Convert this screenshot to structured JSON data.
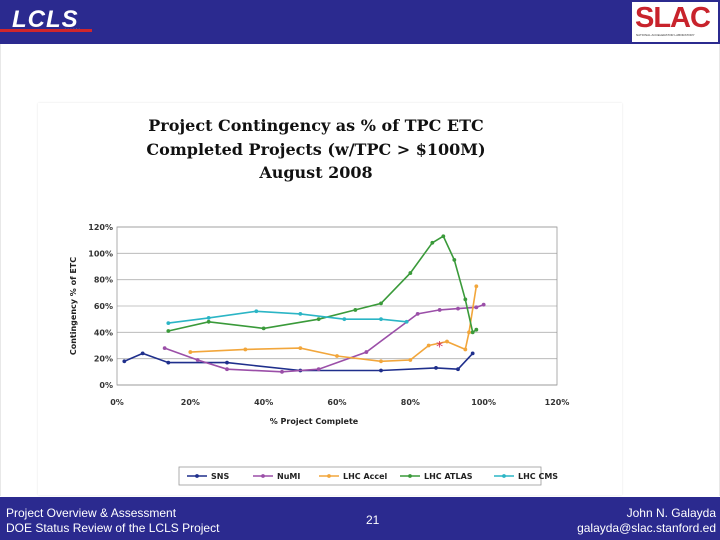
{
  "header": {
    "logo_text": "LCLS",
    "logo_dots": "......",
    "org_logo": "SLAC",
    "org_subtitle": "NATIONAL ACCELERATOR LABORATORY"
  },
  "footer": {
    "left_line1": "Project Overview & Assessment",
    "left_line2": "DOE Status Review of the LCLS Project",
    "page_number": "21",
    "right_line1": "John N. Galayda",
    "right_line2": "galayda@slac.stanford.ed"
  },
  "colors": {
    "bar": "#2b2a8f",
    "accent": "#c8232c"
  },
  "chart_data": {
    "type": "line",
    "title": [
      "Project Contingency as % of TPC ETC",
      "Completed Projects (w/TPC > $100M)",
      "August 2008"
    ],
    "xlabel": "% Project Complete",
    "ylabel": "Contingency % of ETC",
    "xlim": [
      0,
      120
    ],
    "ylim": [
      0,
      120
    ],
    "xticks": [
      0,
      20,
      40,
      60,
      80,
      100,
      120
    ],
    "yticks": [
      0,
      20,
      40,
      60,
      80,
      100,
      120
    ],
    "xtick_labels": [
      "0%",
      "20%",
      "40%",
      "60%",
      "80%",
      "100%",
      "120%"
    ],
    "ytick_labels": [
      "0%",
      "20%",
      "40%",
      "60%",
      "80%",
      "100%",
      "120%"
    ],
    "grid": true,
    "legend_position": "bottom",
    "series": [
      {
        "name": "SNS",
        "color": "#1f2f8c",
        "x": [
          2,
          7,
          14,
          30,
          50,
          72,
          87,
          93,
          97
        ],
        "y": [
          18,
          24,
          17,
          17,
          11,
          11,
          13,
          12,
          24
        ]
      },
      {
        "name": "NuMI",
        "color": "#9b4fa8",
        "x": [
          13,
          22,
          30,
          45,
          55,
          68,
          82,
          88,
          93,
          98,
          100
        ],
        "y": [
          28,
          19,
          12,
          10,
          12,
          25,
          54,
          57,
          58,
          59,
          61
        ]
      },
      {
        "name": "LHC Accel",
        "color": "#f2a63b",
        "x": [
          20,
          35,
          50,
          60,
          72,
          80,
          85,
          90,
          95,
          96,
          98
        ],
        "y": [
          25,
          27,
          28,
          22,
          18,
          19,
          30,
          33,
          27,
          40,
          75
        ]
      },
      {
        "name": "LHC ATLAS",
        "color": "#3a9a3a",
        "x": [
          14,
          25,
          40,
          55,
          65,
          72,
          80,
          86,
          89,
          92,
          95,
          97,
          98
        ],
        "y": [
          41,
          48,
          43,
          50,
          57,
          62,
          85,
          108,
          113,
          95,
          65,
          40,
          42
        ]
      },
      {
        "name": "LHC CMS",
        "color": "#2bb5c5",
        "x": [
          14,
          25,
          38,
          50,
          62,
          72,
          79
        ],
        "y": [
          47,
          51,
          56,
          54,
          50,
          50,
          48
        ]
      }
    ],
    "annotations": [
      {
        "x": 88,
        "y": 30,
        "label": "*",
        "color": "#d02d5a"
      }
    ]
  }
}
